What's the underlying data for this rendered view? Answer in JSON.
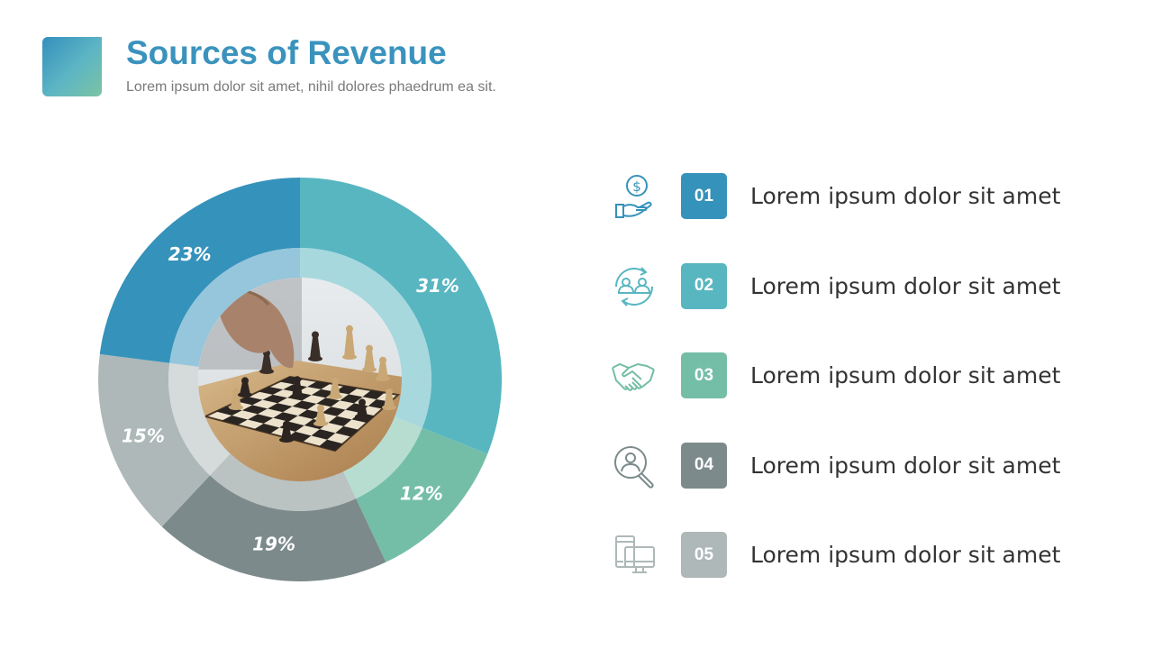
{
  "header": {
    "title": "Sources of Revenue",
    "subtitle": "Lorem ipsum dolor sit amet, nihil dolores phaedrum ea sit."
  },
  "colors": {
    "blue": "#3592bb",
    "teal": "#58b6c1",
    "green": "#74bea7",
    "slate": "#7c8a8b",
    "gray": "#aeb8b8",
    "title": "#3a93bd"
  },
  "chart_data": {
    "type": "pie",
    "style": "donut",
    "start": "top, clockwise",
    "center_image": "chess board photo",
    "slices": [
      {
        "label": "31%",
        "value": 31,
        "color": "#58b6c1"
      },
      {
        "label": "12%",
        "value": 12,
        "color": "#74bea7"
      },
      {
        "label": "19%",
        "value": 19,
        "color": "#7c8a8b"
      },
      {
        "label": "15%",
        "value": 15,
        "color": "#aeb8b8"
      },
      {
        "label": "23%",
        "value": 23,
        "color": "#3592bb"
      }
    ]
  },
  "legend": [
    {
      "number": "01",
      "text": "Lorem ipsum dolor sit amet",
      "icon": "money-hand-icon",
      "color": "#3592bb"
    },
    {
      "number": "02",
      "text": "Lorem ipsum dolor sit amet",
      "icon": "people-exchange-icon",
      "color": "#58b6c1"
    },
    {
      "number": "03",
      "text": "Lorem ipsum dolor sit amet",
      "icon": "handshake-icon",
      "color": "#74bea7"
    },
    {
      "number": "04",
      "text": "Lorem ipsum dolor sit amet",
      "icon": "search-person-icon",
      "color": "#7c8a8b"
    },
    {
      "number": "05",
      "text": "Lorem ipsum dolor sit amet",
      "icon": "devices-icon",
      "color": "#aeb8b8"
    }
  ]
}
